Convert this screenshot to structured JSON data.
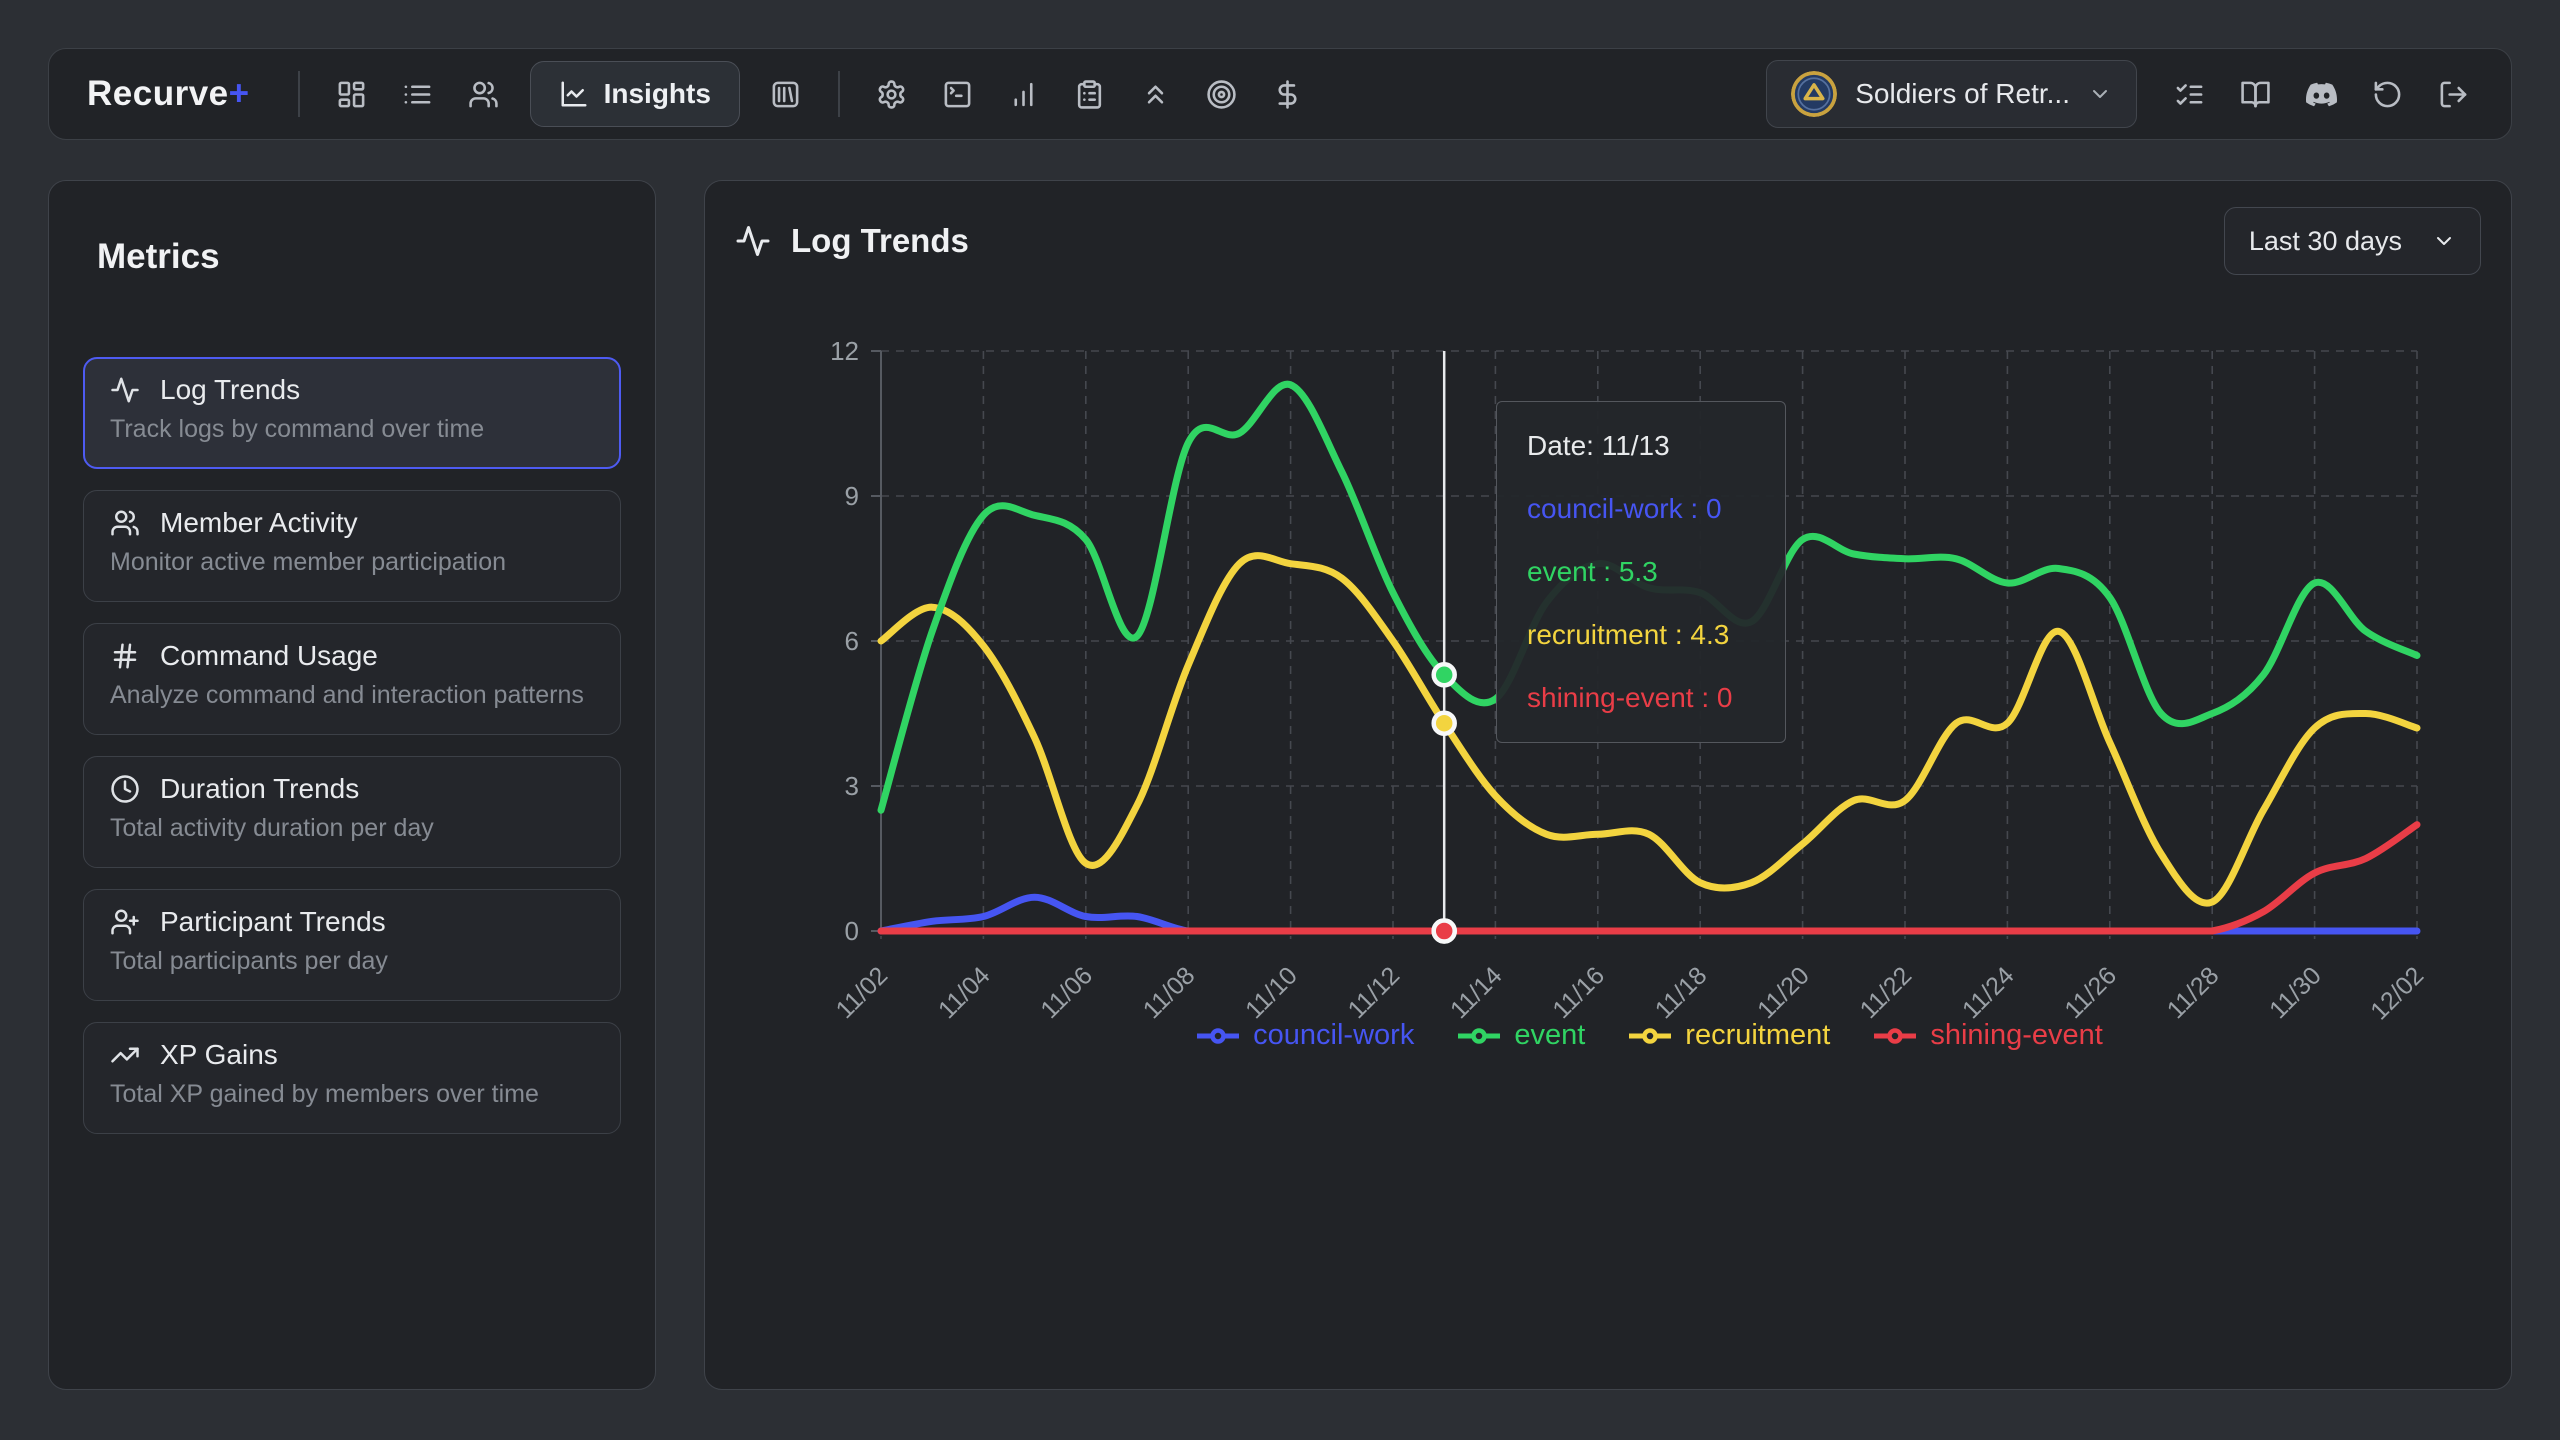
{
  "navbar": {
    "logo_text": "Recurve",
    "logo_plus": "+",
    "left_icons": [
      "layout-dashboard",
      "list",
      "users"
    ],
    "active_tab": {
      "icon": "line-chart",
      "label": "Insights"
    },
    "mid_icons": [
      "library"
    ],
    "tool_icons": [
      "settings",
      "terminal",
      "bar-chart",
      "clipboard-list",
      "chevrons-up",
      "target",
      "dollar-sign"
    ],
    "server_selector": {
      "name": "Soldiers of Retr..."
    },
    "right_icons": [
      "list-checks",
      "book-open",
      "discord",
      "rotate-ccw",
      "log-out"
    ]
  },
  "sidebar": {
    "title": "Metrics",
    "items": [
      {
        "icon": "activity",
        "title": "Log Trends",
        "subtitle": "Track logs by command over time",
        "selected": true
      },
      {
        "icon": "users",
        "title": "Member Activity",
        "subtitle": "Monitor active member participation",
        "selected": false
      },
      {
        "icon": "hash",
        "title": "Command Usage",
        "subtitle": "Analyze command and interaction patterns",
        "selected": false
      },
      {
        "icon": "clock",
        "title": "Duration Trends",
        "subtitle": "Total activity duration per day",
        "selected": false
      },
      {
        "icon": "user-plus",
        "title": "Participant Trends",
        "subtitle": "Total participants per day",
        "selected": false
      },
      {
        "icon": "trending-up",
        "title": "XP Gains",
        "subtitle": "Total XP gained by members over time",
        "selected": false
      }
    ]
  },
  "main": {
    "title": "Log Trends",
    "title_icon": "activity",
    "range_selector": {
      "label": "Last 30 days"
    }
  },
  "chart_data": {
    "type": "line",
    "title": "Log Trends",
    "x_labels": [
      "11/02",
      "11/03",
      "11/04",
      "11/05",
      "11/06",
      "11/07",
      "11/08",
      "11/09",
      "11/10",
      "11/11",
      "11/12",
      "11/13",
      "11/14",
      "11/15",
      "11/16",
      "11/17",
      "11/18",
      "11/19",
      "11/20",
      "11/21",
      "11/22",
      "11/23",
      "11/24",
      "11/25",
      "11/26",
      "11/27",
      "11/28",
      "11/29",
      "11/30",
      "12/01",
      "12/02"
    ],
    "xtick_indices": [
      0,
      2,
      4,
      6,
      8,
      10,
      12,
      14,
      16,
      18,
      20,
      22,
      24,
      26,
      28,
      30
    ],
    "ylim": [
      0,
      12
    ],
    "yticks": [
      0,
      3,
      6,
      9,
      12
    ],
    "grid": "dashed",
    "legend_position": "bottom",
    "series": [
      {
        "name": "council-work",
        "color": "#4655f2",
        "values": [
          0,
          0.2,
          0.3,
          0.7,
          0.3,
          0.3,
          0,
          0,
          0,
          0,
          0,
          0,
          0,
          0,
          0,
          0,
          0,
          0,
          0,
          0,
          0,
          0,
          0,
          0,
          0,
          0,
          0,
          0,
          0,
          0,
          0
        ]
      },
      {
        "name": "event",
        "color": "#30d463",
        "values": [
          2.5,
          6.2,
          8.6,
          8.6,
          8.1,
          6.1,
          10.1,
          10.3,
          11.3,
          9.5,
          7.0,
          5.3,
          4.8,
          6.8,
          7.6,
          7.1,
          7.0,
          6.4,
          8.1,
          7.8,
          7.7,
          7.7,
          7.2,
          7.5,
          6.9,
          4.5,
          4.5,
          5.3,
          7.2,
          6.2,
          5.7
        ]
      },
      {
        "name": "recruitment",
        "color": "#f3d43f",
        "values": [
          6.0,
          6.7,
          5.9,
          4.0,
          1.4,
          2.6,
          5.5,
          7.6,
          7.6,
          7.3,
          6.0,
          4.3,
          2.8,
          2.0,
          2.0,
          2.0,
          1.0,
          1.0,
          1.8,
          2.7,
          2.7,
          4.3,
          4.3,
          6.2,
          3.9,
          1.6,
          0.6,
          2.5,
          4.2,
          4.5,
          4.2
        ]
      },
      {
        "name": "shining-event",
        "color": "#e93d47",
        "values": [
          0,
          0,
          0,
          0,
          0,
          0,
          0,
          0,
          0,
          0,
          0,
          0,
          0,
          0,
          0,
          0,
          0,
          0,
          0,
          0,
          0,
          0,
          0,
          0,
          0,
          0,
          0,
          0.4,
          1.2,
          1.5,
          2.2
        ]
      }
    ],
    "draw_order": [
      0,
      2,
      1,
      3
    ]
  },
  "tooltip": {
    "day_index": 11,
    "date_label": "Date: 11/13",
    "rows": [
      "council-work : 0",
      "event : 5.3",
      "recruitment : 4.3",
      "shining-event : 0"
    ]
  },
  "colors": {
    "accent_blue": "#4655f2",
    "crosshair": "#e8eaed",
    "grid": "#45484f",
    "axis_text": "#9aa0a6",
    "panel_bg": "#212327",
    "page_bg": "#2c2f34"
  }
}
